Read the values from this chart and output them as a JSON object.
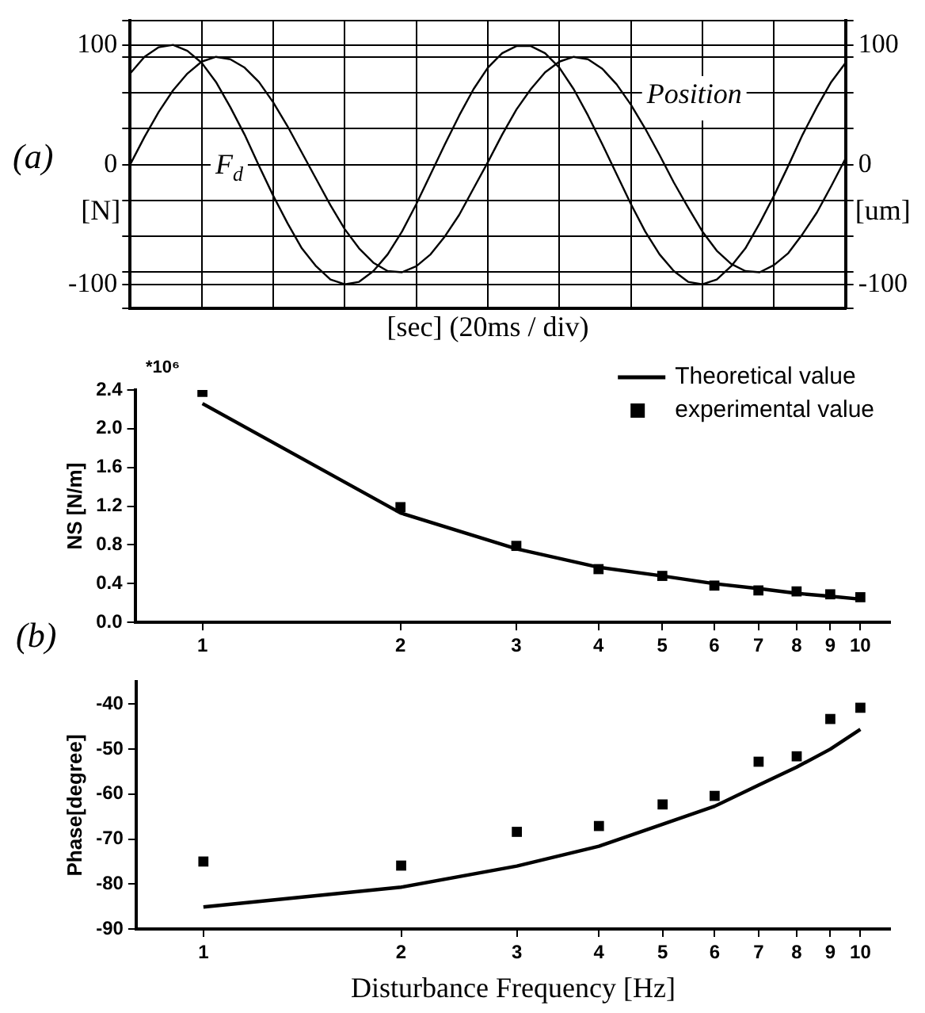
{
  "chart_data": [
    {
      "type": "line",
      "xlabel": "[sec] (20ms / div)",
      "ylabel": "[N]",
      "y2label": "[um]",
      "annotations": [
        "(a)"
      ],
      "categories": [
        null,
        null,
        null,
        null,
        null,
        null,
        null,
        null,
        null,
        null,
        null,
        null,
        null,
        null,
        null,
        null,
        null,
        null,
        null,
        null,
        null,
        null,
        null,
        null,
        null,
        null,
        null,
        null,
        null,
        null,
        null,
        null,
        null,
        null,
        null,
        null,
        null,
        null,
        null,
        null,
        null,
        null,
        null,
        null,
        null,
        null,
        null,
        null,
        null,
        null,
        null
      ],
      "series": [
        {
          "name": "F$_{d}$",
          "color": "#000000",
          "values": [
            76,
            90,
            98,
            100,
            95,
            85,
            69,
            48,
            25,
            -1,
            -26,
            -49,
            -70,
            -85,
            -96,
            -100,
            -98,
            -89,
            -75,
            -56,
            -33,
            -8,
            17,
            41,
            63,
            81,
            93,
            99,
            99,
            93,
            81,
            63,
            41,
            17,
            -8,
            -33,
            -56,
            -75,
            -89,
            -98,
            -100,
            -96,
            -85,
            -70,
            -49,
            -26,
            -1,
            25,
            48,
            69,
            85
          ]
        },
        {
          "name": "Position",
          "color": "#000000",
          "axis": "y2",
          "values": [
            0,
            23,
            44,
            62,
            76,
            86,
            90,
            88,
            81,
            69,
            52,
            32,
            10,
            -12,
            -34,
            -54,
            -70,
            -82,
            -89,
            -90,
            -85,
            -75,
            -60,
            -42,
            -20,
            2,
            25,
            46,
            63,
            77,
            86,
            90,
            88,
            80,
            67,
            50,
            30,
            8,
            -15,
            -36,
            -56,
            -72,
            -83,
            -89,
            -90,
            -84,
            -74,
            -58,
            -40,
            -18,
            5
          ]
        }
      ],
      "ylim": [
        -120,
        120
      ],
      "yticks": [
        {
          "value": -120,
          "label": null
        },
        -100,
        {
          "value": -90,
          "label": null
        },
        {
          "value": -60,
          "label": null
        },
        {
          "value": -30,
          "label": null
        },
        0,
        {
          "value": 30,
          "label": null
        },
        {
          "value": 60,
          "label": null
        },
        {
          "value": 90,
          "label": null
        },
        100,
        {
          "value": 120,
          "label": null
        }
      ],
      "y2lim": [
        -120,
        120
      ],
      "y2ticks": [
        {
          "value": -120,
          "label": null
        },
        -100,
        {
          "value": -90,
          "label": null
        },
        {
          "value": -60,
          "label": null
        },
        {
          "value": -30,
          "label": null
        },
        0,
        {
          "value": 30,
          "label": null
        },
        {
          "value": 60,
          "label": null
        },
        {
          "value": 90,
          "label": null
        },
        100,
        {
          "value": 120,
          "label": null
        }
      ],
      "grid": true,
      "legend": false,
      "marker": "none",
      "tick_labels": "y"
    },
    {
      "type": "line",
      "ylabel": "NS [N/m]",
      "annotations": [
        "*10⁶",
        "(b)"
      ],
      "x": [
        1,
        2,
        3,
        4,
        5,
        6,
        7,
        8,
        9,
        10
      ],
      "series": [
        {
          "name": "Theoretical value",
          "color": "#000000",
          "marker": "none",
          "values": [
            2.26,
            1.13,
            0.76,
            0.57,
            0.48,
            0.4,
            0.35,
            0.3,
            0.27,
            0.24
          ]
        },
        {
          "name": "experimental value",
          "type": "scatter",
          "color": "#000000",
          "marker": "square",
          "values": [
            2.38,
            1.19,
            0.79,
            0.55,
            0.48,
            0.38,
            0.33,
            0.32,
            0.29,
            0.26
          ]
        }
      ],
      "log": "x",
      "xlim": [
        0.79,
        11.1
      ],
      "xticks": [
        1,
        2,
        3,
        4,
        5,
        6,
        7,
        8,
        9,
        10
      ],
      "ylim": [
        0,
        2.4
      ],
      "yticks": [
        {
          "value": 0,
          "label": "0.0"
        },
        {
          "value": 0.4,
          "label": "0.4"
        },
        {
          "value": 0.8,
          "label": "0.8"
        },
        {
          "value": 1.2,
          "label": "1.2"
        },
        {
          "value": 1.6,
          "label": "1.6"
        },
        {
          "value": 2.0,
          "label": "2.0"
        },
        {
          "value": 2.4,
          "label": "2.4"
        }
      ],
      "grid": false,
      "legend": "top right"
    },
    {
      "type": "line",
      "xlabel": "Disturbance Frequency [Hz]",
      "ylabel": "Phase[degree]",
      "x": [
        1,
        2,
        3,
        4,
        5,
        6,
        7,
        8,
        9,
        10
      ],
      "series": [
        {
          "color": "#000000",
          "marker": "none",
          "values": [
            -85.1,
            -80.7,
            -76.0,
            -71.6,
            -66.7,
            -62.7,
            -58.0,
            -54.0,
            -50.0,
            -45.6
          ]
        },
        {
          "type": "scatter",
          "color": "#000000",
          "marker": "square",
          "values": [
            -75.0,
            -75.9,
            -68.4,
            -67.1,
            -62.3,
            -60.4,
            -52.8,
            -51.6,
            -43.3,
            -40.8
          ]
        }
      ],
      "log": "x",
      "xlim": [
        0.79,
        11.1
      ],
      "xticks": [
        1,
        2,
        3,
        4,
        5,
        6,
        7,
        8,
        9,
        10
      ],
      "ylim": [
        -90,
        -35
      ],
      "yticks": [
        -90,
        -80,
        -70,
        -60,
        -50,
        -40
      ],
      "grid": false,
      "legend": false
    }
  ]
}
